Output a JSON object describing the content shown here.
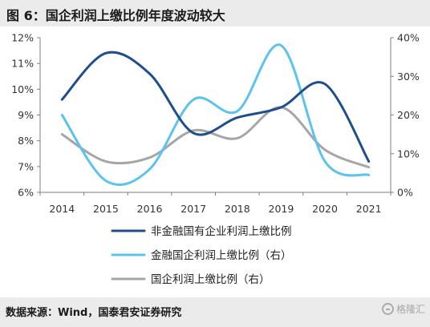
{
  "header": {
    "title": "图 6：国企利润上缴比例年度波动较大"
  },
  "footer": {
    "source": "数据来源：Wind，国泰君安证券研究",
    "watermark": "格隆汇"
  },
  "colors": {
    "series1": "#1f4e8c",
    "series2": "#5bc3ee",
    "series3": "#a6a6a6"
  },
  "chart_data": {
    "type": "line",
    "categories": [
      "2014",
      "2015",
      "2016",
      "2017",
      "2018",
      "2019",
      "2020",
      "2021"
    ],
    "left_axis": {
      "ticks": [
        "6%",
        "7%",
        "8%",
        "9%",
        "10%",
        "11%",
        "12%"
      ],
      "range": [
        6,
        12
      ]
    },
    "right_axis": {
      "ticks": [
        "0%",
        "10%",
        "20%",
        "30%",
        "40%"
      ],
      "range": [
        0,
        40
      ]
    },
    "legend_position": "bottom",
    "series": [
      {
        "name": "非金融国有企业利润上缴比例",
        "axis": "left",
        "color": "#1f4e8c",
        "values": [
          9.6,
          11.4,
          10.6,
          8.3,
          8.9,
          9.3,
          10.2,
          7.2
        ]
      },
      {
        "name": "金融国企利润上缴比例（右）",
        "axis": "right",
        "color": "#5bc3ee",
        "values": [
          20,
          3,
          6,
          24,
          21,
          38,
          8,
          4.5
        ]
      },
      {
        "name": "国企利润上缴比例（右）",
        "axis": "right",
        "color": "#a6a6a6",
        "values": [
          15,
          8,
          9,
          16,
          14,
          22,
          11,
          6.5
        ]
      }
    ]
  }
}
